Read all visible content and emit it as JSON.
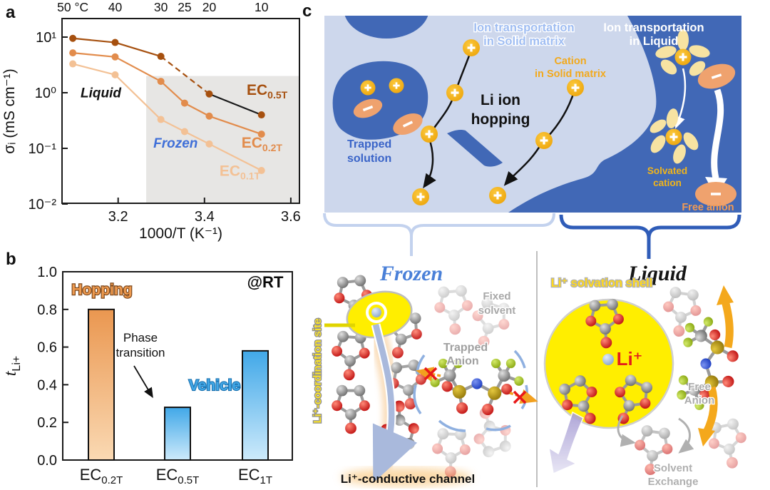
{
  "figure": {
    "panel_a_label": "a",
    "panel_b_label": "b",
    "panel_c_label": "c"
  },
  "chart_data": [
    {
      "type": "line",
      "panel": "a",
      "xlabel": "1000/T (K⁻¹)",
      "ylabel": "σᵢ (mS cm⁻¹)",
      "xlim": [
        3.07,
        3.62
      ],
      "ylog": true,
      "ylim": [
        0.01,
        21
      ],
      "grid": false,
      "x_ticks": [
        {
          "v": 3.2,
          "label": "3.2"
        },
        {
          "v": 3.4,
          "label": "3.4"
        },
        {
          "v": 3.6,
          "label": "3.6"
        }
      ],
      "y_ticks": [
        {
          "v": 10,
          "label": "10¹"
        },
        {
          "v": 1,
          "label": "10⁰"
        },
        {
          "v": 0.1,
          "label": "10⁻¹"
        },
        {
          "v": 0.01,
          "label": "10⁻²"
        }
      ],
      "top_ticks": [
        {
          "v": 3.095,
          "label": "50 °C"
        },
        {
          "v": 3.193,
          "label": "40"
        },
        {
          "v": 3.299,
          "label": "30"
        },
        {
          "v": 3.354,
          "label": "25"
        },
        {
          "v": 3.411,
          "label": "20"
        },
        {
          "v": 3.532,
          "label": "10"
        }
      ],
      "frozen_region": {
        "x_from": 3.265,
        "y_top": 2,
        "color": "#e7e6e4"
      },
      "series": [
        {
          "name": "EC",
          "sub": "0.5T",
          "color": "#a6500f",
          "x": [
            3.095,
            3.193,
            3.299,
            3.411,
            3.532
          ],
          "y": [
            9.5,
            8.0,
            4.5,
            0.95,
            0.4
          ],
          "seg_styles": [
            "solid",
            "solid",
            "dashed",
            "black"
          ],
          "label_pos": [
            3.545,
            0.92
          ]
        },
        {
          "name": "EC",
          "sub": "0.2T",
          "color": "#e28c4c",
          "x": [
            3.095,
            3.193,
            3.299,
            3.354,
            3.411,
            3.532
          ],
          "y": [
            5.2,
            4.4,
            1.6,
            0.65,
            0.38,
            0.18
          ],
          "seg_styles": [
            "solid",
            "solid",
            "solid",
            "solid",
            "solid"
          ],
          "label_pos": [
            3.533,
            0.103
          ]
        },
        {
          "name": "EC",
          "sub": "0.1T",
          "color": "#f3c195",
          "x": [
            3.095,
            3.193,
            3.299,
            3.354,
            3.411,
            3.532
          ],
          "y": [
            3.3,
            2.1,
            0.33,
            0.2,
            0.12,
            0.04
          ],
          "seg_styles": [
            "solid",
            "solid",
            "solid",
            "solid",
            "solid"
          ],
          "label_pos": [
            3.482,
            0.032
          ]
        }
      ],
      "annotations": [
        {
          "text": "Liquid",
          "x": 3.16,
          "y": 0.82,
          "color": "#111111"
        },
        {
          "text": "Frozen",
          "x": 3.333,
          "y": 0.103,
          "color": "#3f6fd8"
        }
      ]
    },
    {
      "type": "bar",
      "panel": "b",
      "ylabel_main": "t",
      "ylabel_sub": "Li+",
      "categories": [
        {
          "main": "EC",
          "sub": "0.2T"
        },
        {
          "main": "EC",
          "sub": "0.5T"
        },
        {
          "main": "EC",
          "sub": "1T"
        }
      ],
      "values": [
        0.8,
        0.28,
        0.58
      ],
      "ylim": [
        0,
        1.0
      ],
      "y_ticks": [
        0.0,
        0.2,
        0.4,
        0.6,
        0.8,
        1.0
      ],
      "bar_colors": [
        {
          "top": "#ea9750",
          "bottom": "#fad9b3"
        },
        {
          "top": "#41a8e8",
          "bottom": "#cdeafb"
        },
        {
          "top": "#41a8e8",
          "bottom": "#cdeafb"
        }
      ],
      "annotations": {
        "hopping": "Hopping",
        "vehicle": "Vehicle",
        "rt": "@RT",
        "phase_line1": "Phase",
        "phase_line2": "transition"
      }
    }
  ],
  "panel_c": {
    "schematic": {
      "solid_matrix_label_line1": "Ion transportation",
      "solid_matrix_label_line2": "in Solid matrix",
      "liquid_label_line1": "Ion transportation",
      "liquid_label_line2": "in Liquid",
      "cation_label_line1": "Cation",
      "cation_label_line2": "in Solid matrix",
      "trapped_solution_line1": "Trapped",
      "trapped_solution_line2": "solution",
      "hopping_line1": "Li ion",
      "hopping_line2": "hopping",
      "solvated_cation_line1": "Solvated",
      "solvated_cation_line2": "cation",
      "free_anion": "Free anion"
    },
    "frozen": {
      "title": "Frozen",
      "coordination_site": "Li⁺-coordination site",
      "fixed_solvent_line1": "Fixed",
      "fixed_solvent_line2": "solvent",
      "trapped_anion_line1": "Trapped",
      "trapped_anion_line2": "Anion",
      "conductive_channel": "Li⁺-conductive channel"
    },
    "liquid": {
      "title": "Liquid",
      "solvation_shell": "Li⁺ solvation shell",
      "li_ion": "Li⁺",
      "free_anion_line1": "Free",
      "free_anion_line2": "Anion",
      "solvent_exchange_line1": "Solvent",
      "solvent_exchange_line2": "Exchange"
    },
    "colors": {
      "matrix_bg": "#cdd7ec",
      "liquid_blue": "#4168b6",
      "cation_yellow": "#f3b41c",
      "anion_orange": "#efa26e",
      "highlight_yellow": "#ffee00"
    }
  }
}
